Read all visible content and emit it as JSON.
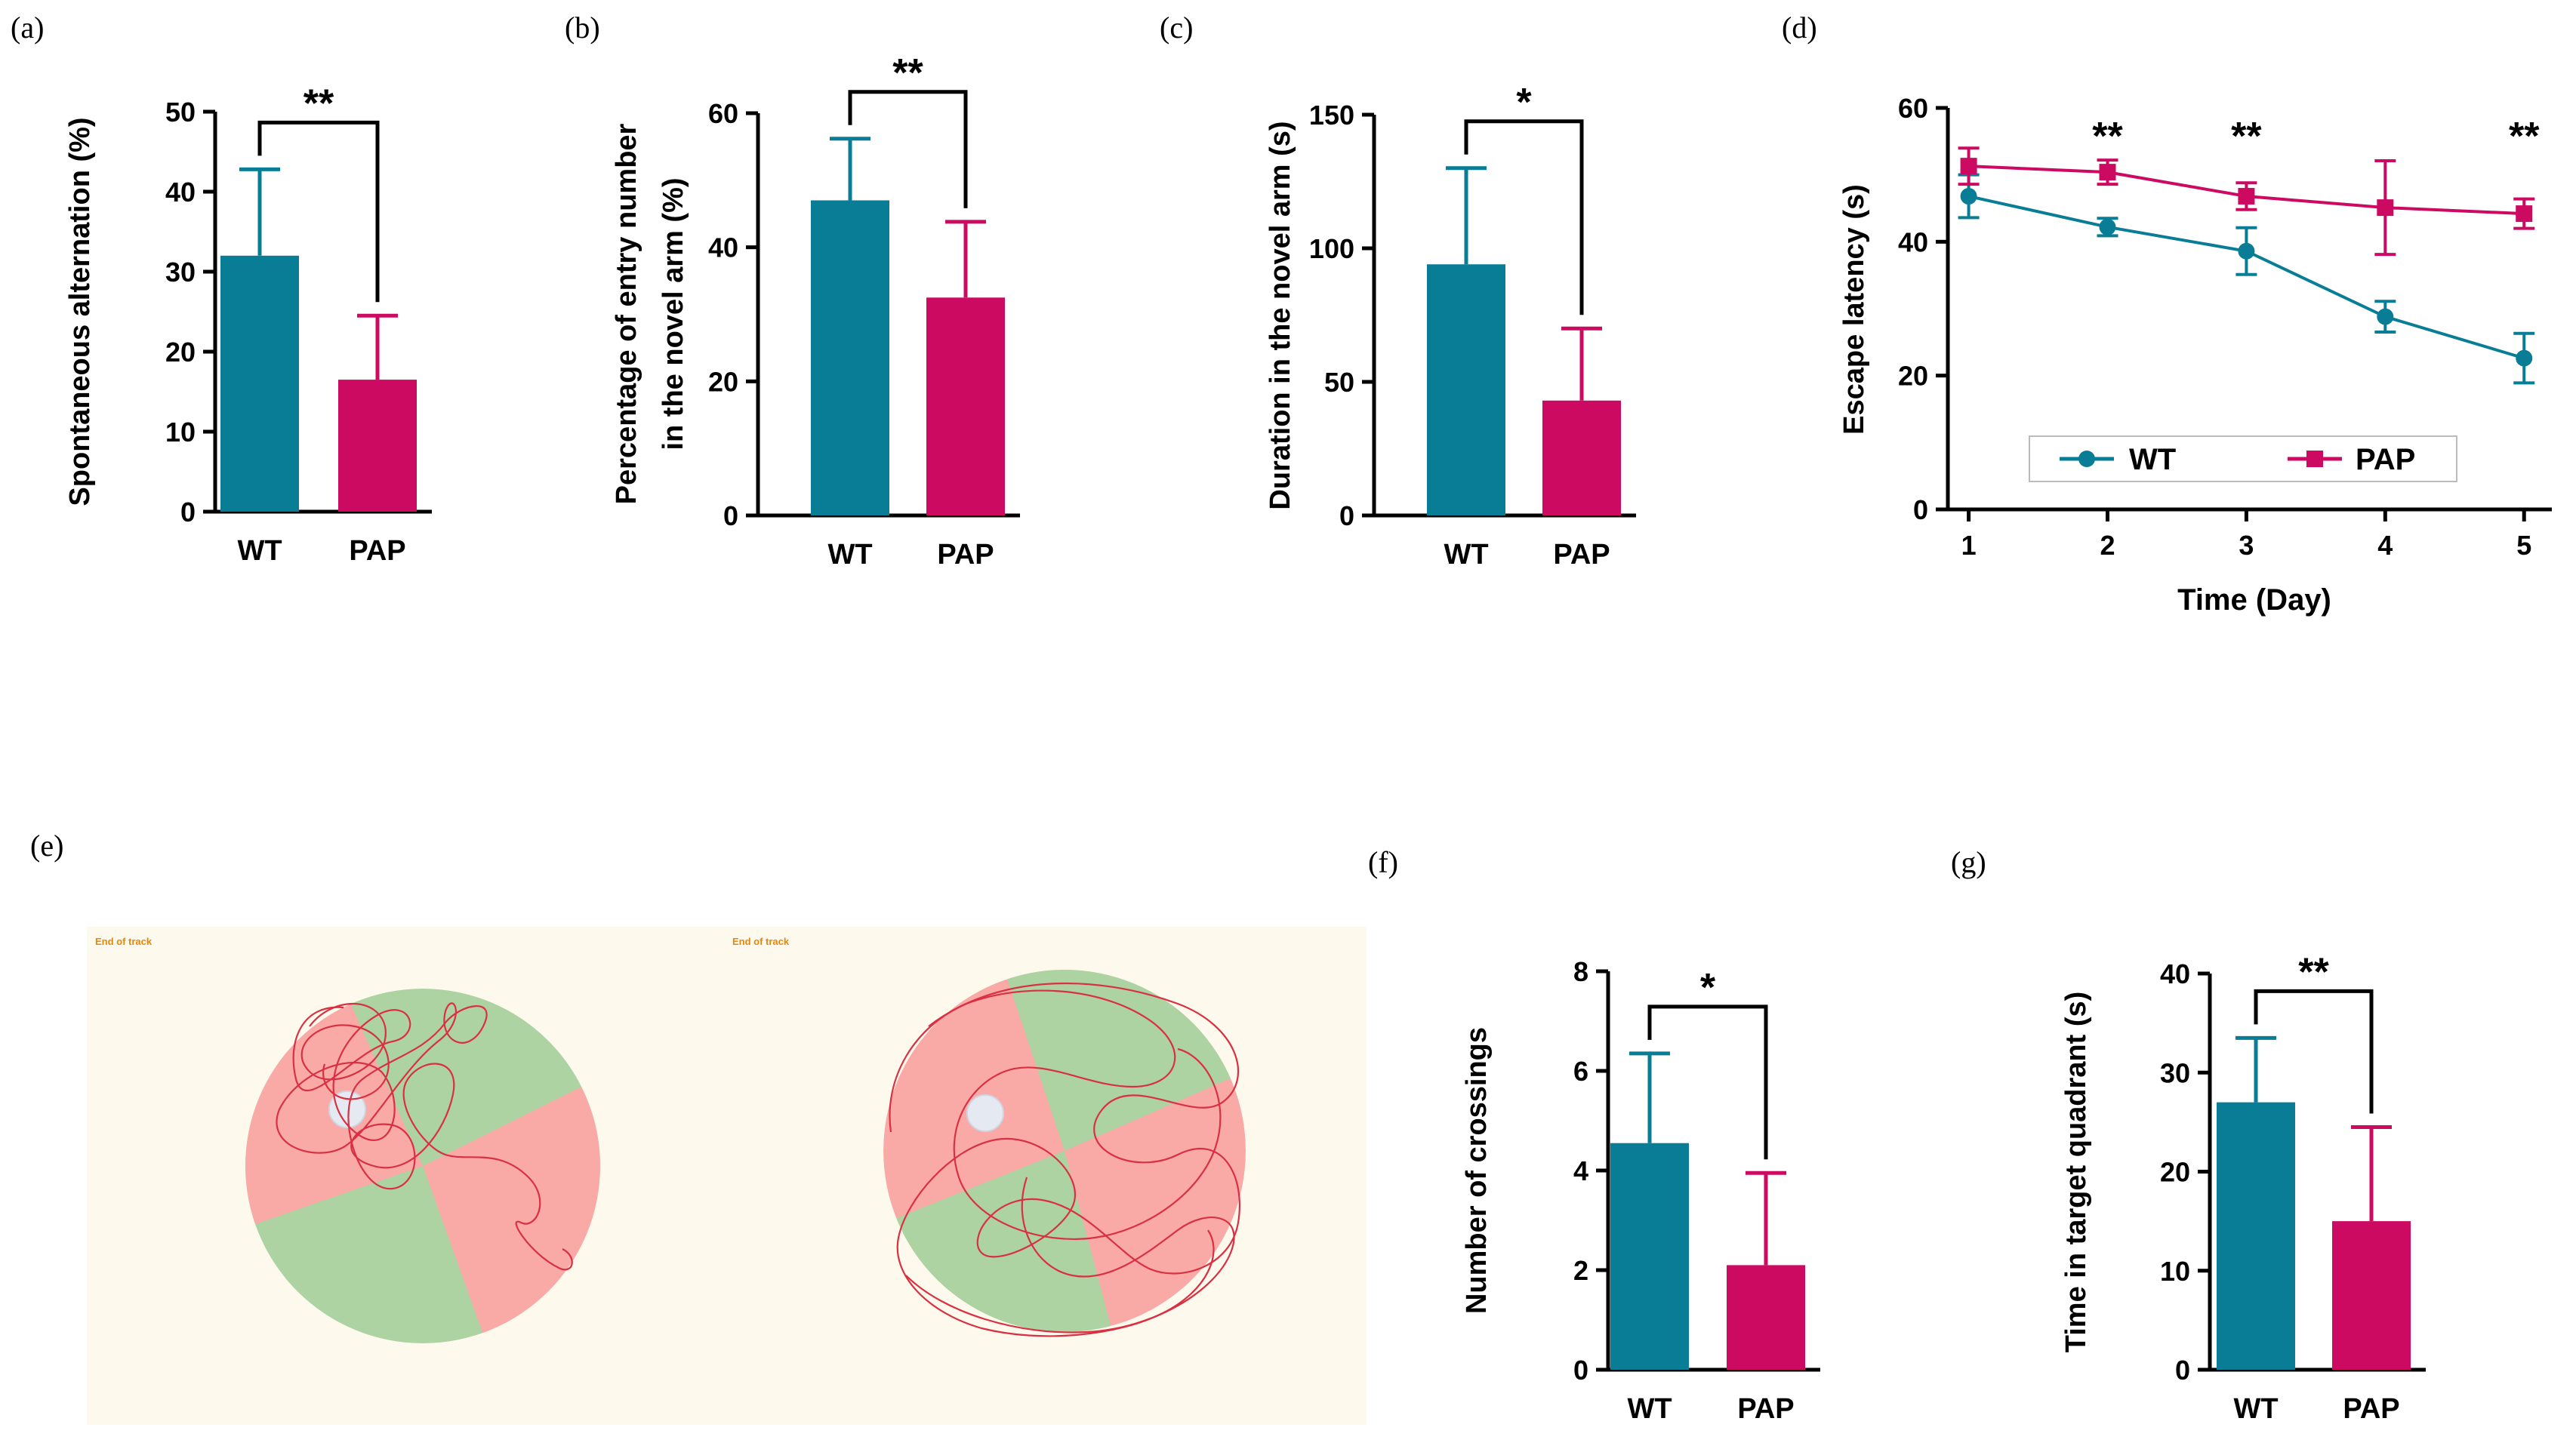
{
  "colors": {
    "wt": "#0a7d96",
    "pap": "#cc0a61",
    "axis": "#000000",
    "arena_bg": "#fdf9ec",
    "quad_red": "#f9aaa6",
    "quad_green": "#acd3a1",
    "track": "#d93043",
    "platform": "#e4e9f2",
    "track_label": "#e4870e"
  },
  "panels": {
    "a": {
      "letter": "(a)"
    },
    "b": {
      "letter": "(b)"
    },
    "c": {
      "letter": "(c)"
    },
    "d": {
      "letter": "(d)"
    },
    "e": {
      "letter": "(e)",
      "track_label_left": "End of track",
      "track_label_right": "End of track"
    },
    "f": {
      "letter": "(f)"
    },
    "g": {
      "letter": "(g)"
    }
  },
  "chart_data": [
    {
      "id": "a",
      "type": "bar",
      "ylabel": "Spontaneous alternation (%)",
      "categories": [
        "WT",
        "PAP"
      ],
      "values": [
        32,
        16.5
      ],
      "errors": [
        10.8,
        8
      ],
      "ylim": [
        0,
        50
      ],
      "yticks": [
        0,
        10,
        20,
        30,
        40,
        50
      ],
      "significance": "**"
    },
    {
      "id": "b",
      "type": "bar",
      "ylabel_lines": [
        "Percentage of entry number",
        "in the novel arm (%)"
      ],
      "categories": [
        "WT",
        "PAP"
      ],
      "values": [
        47,
        32.5
      ],
      "errors": [
        9.2,
        11.3
      ],
      "ylim": [
        0,
        60
      ],
      "yticks": [
        0,
        20,
        40,
        60
      ],
      "significance": "**"
    },
    {
      "id": "c",
      "type": "bar",
      "ylabel": "Duration in the novel arm (s)",
      "categories": [
        "WT",
        "PAP"
      ],
      "values": [
        94,
        43
      ],
      "errors": [
        36,
        27
      ],
      "ylim": [
        0,
        150
      ],
      "yticks": [
        0,
        50,
        100,
        150
      ],
      "significance": "*"
    },
    {
      "id": "d",
      "type": "line",
      "xlabel": "Time (Day)",
      "ylabel": "Escape latency (s)",
      "x": [
        1,
        2,
        3,
        4,
        5
      ],
      "xlim": [
        0.85,
        5.2
      ],
      "ylim": [
        0,
        60
      ],
      "yticks": [
        0,
        20,
        40,
        60
      ],
      "series": [
        {
          "name": "WT",
          "marker": "circle",
          "values": [
            46.8,
            42.2,
            38.6,
            28.8,
            22.6
          ],
          "errors": [
            3.2,
            1.3,
            3.5,
            2.3,
            3.7
          ]
        },
        {
          "name": "PAP",
          "marker": "square",
          "values": [
            51.3,
            50.4,
            46.8,
            45.1,
            44.2
          ],
          "errors": [
            2.7,
            1.8,
            2.0,
            7.0,
            2.2
          ]
        }
      ],
      "annotations": [
        {
          "x": 2,
          "text": "**"
        },
        {
          "x": 3,
          "text": "**"
        },
        {
          "x": 5,
          "text": "**"
        }
      ]
    },
    {
      "id": "f",
      "type": "bar",
      "ylabel": "Number of crossings",
      "categories": [
        "WT",
        "PAP"
      ],
      "values": [
        4.55,
        2.1
      ],
      "errors": [
        1.8,
        1.85
      ],
      "ylim": [
        0,
        8
      ],
      "yticks": [
        0,
        2,
        4,
        6,
        8
      ],
      "significance": "*"
    },
    {
      "id": "g",
      "type": "bar",
      "ylabel": "Time in target quadrant (s)",
      "categories": [
        "WT",
        "PAP"
      ],
      "values": [
        27,
        15
      ],
      "errors": [
        6.5,
        9.5
      ],
      "ylim": [
        0,
        40
      ],
      "yticks": [
        0,
        10,
        20,
        30,
        40
      ],
      "significance": "**"
    }
  ]
}
